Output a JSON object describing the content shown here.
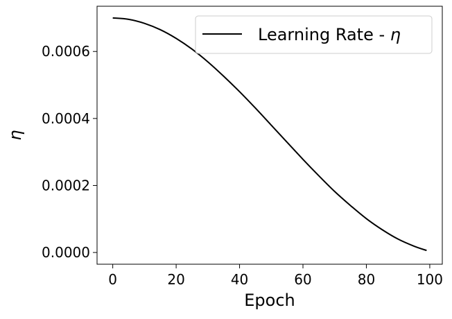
{
  "chart_data": {
    "type": "line",
    "xlabel": "Epoch",
    "ylabel": "η",
    "xlim": [
      -4.95,
      103.95
    ],
    "ylim": [
      -3.5e-05,
      0.000735
    ],
    "x_ticks": [
      0,
      20,
      40,
      60,
      80,
      100
    ],
    "x_tick_labels": [
      "0",
      "20",
      "40",
      "60",
      "80",
      "100"
    ],
    "y_ticks": [
      0.0,
      0.0002,
      0.0004,
      0.0006
    ],
    "y_tick_labels": [
      "0.0000",
      "0.0002",
      "0.0004",
      "0.0006"
    ],
    "grid": false,
    "legend_position": "top-right",
    "series": [
      {
        "name": "Learning Rate - ",
        "name_symbol": "η",
        "color": "#000000",
        "x": [
          0,
          5,
          10,
          15,
          20,
          25,
          30,
          35,
          40,
          45,
          50,
          55,
          60,
          65,
          70,
          75,
          80,
          85,
          90,
          95,
          99
        ],
        "y": [
          0.0007,
          0.000696,
          0.000684,
          0.000665,
          0.000639,
          0.000607,
          0.000569,
          0.000526,
          0.00048,
          0.000431,
          0.00038,
          0.000329,
          0.000278,
          0.000229,
          0.000182,
          0.00014,
          0.000101,
          6.8e-05,
          4e-05,
          1.9e-05,
          6e-06
        ]
      }
    ]
  }
}
